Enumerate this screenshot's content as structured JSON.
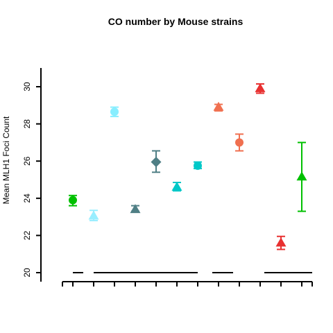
{
  "chart_data": {
    "type": "scatter",
    "title": "CO number by Mouse strains",
    "xlabel": "",
    "ylabel": "Mean MLH1 Foci Count",
    "ylim": [
      20,
      31
    ],
    "yticks": [
      20,
      22,
      24,
      26,
      28,
      30
    ],
    "xlim": [
      0.5,
      12.5
    ],
    "grid": false,
    "points": [
      {
        "x": 1,
        "y": 23.9,
        "lo": 23.6,
        "hi": 24.15,
        "shape": "circle",
        "color": "#00C000"
      },
      {
        "x": 2,
        "y": 23.05,
        "lo": 22.8,
        "hi": 23.35,
        "shape": "triangle",
        "color": "#99EEFF"
      },
      {
        "x": 3,
        "y": 28.65,
        "lo": 28.4,
        "hi": 28.9,
        "shape": "circle",
        "color": "#88EEFF"
      },
      {
        "x": 4,
        "y": 23.4,
        "lo": 23.3,
        "hi": 23.6,
        "shape": "triangle",
        "color": "#4F7F85"
      },
      {
        "x": 5,
        "y": 25.95,
        "lo": 25.4,
        "hi": 26.55,
        "shape": "diamond",
        "color": "#4F7F85"
      },
      {
        "x": 6,
        "y": 24.6,
        "lo": 24.4,
        "hi": 24.85,
        "shape": "triangle",
        "color": "#00C8C8"
      },
      {
        "x": 7,
        "y": 25.75,
        "lo": 25.6,
        "hi": 25.95,
        "shape": "circle",
        "color": "#00C8C8"
      },
      {
        "x": 8,
        "y": 28.9,
        "lo": 28.7,
        "hi": 29.05,
        "shape": "triangle",
        "color": "#F07050"
      },
      {
        "x": 9,
        "y": 27.0,
        "lo": 26.55,
        "hi": 27.45,
        "shape": "circle",
        "color": "#F07050"
      },
      {
        "x": 10,
        "y": 29.9,
        "lo": 29.65,
        "hi": 30.15,
        "shape": "triangle",
        "color": "#E83030"
      },
      {
        "x": 11,
        "y": 21.6,
        "lo": 21.25,
        "hi": 21.95,
        "shape": "triangle",
        "color": "#E83030"
      },
      {
        "x": 12,
        "y": 25.15,
        "lo": 23.3,
        "hi": 27.0,
        "shape": "triangle",
        "color": "#00C000"
      }
    ],
    "group_lines": [
      {
        "x0": 1,
        "x1": 1.5,
        "y": 20
      },
      {
        "x0": 2,
        "x1": 7,
        "y": 20
      },
      {
        "x0": 7.7,
        "x1": 8.7,
        "y": 20
      },
      {
        "x0": 10.2,
        "x1": 12.5,
        "y": 20
      }
    ]
  }
}
